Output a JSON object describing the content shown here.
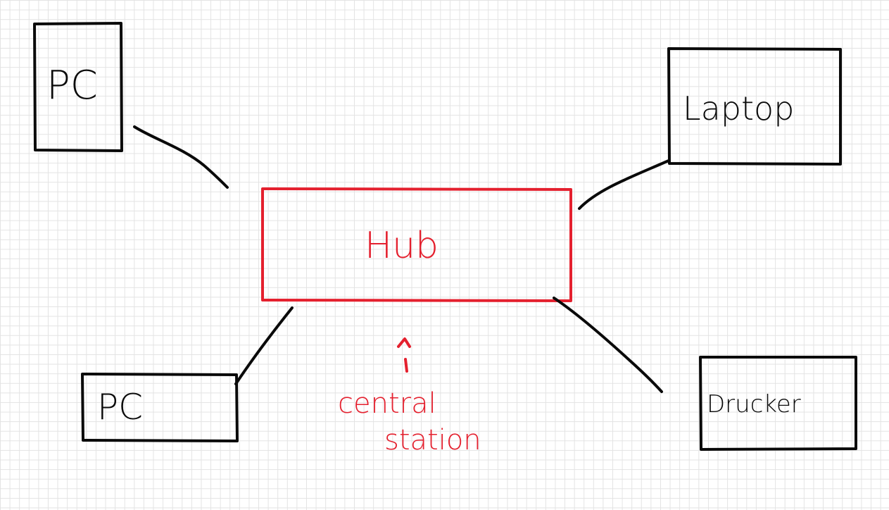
{
  "diagram": {
    "nodes": {
      "pc_top": {
        "label": "PC"
      },
      "laptop": {
        "label": "Laptop"
      },
      "hub": {
        "label": "Hub"
      },
      "pc_bottom": {
        "label": "PC"
      },
      "drucker": {
        "label": "Drucker"
      }
    },
    "annotation": {
      "line1": "central",
      "line2": "station"
    },
    "colors": {
      "ink": "#0a0a0a",
      "accent": "#e4202e",
      "grid": "#e3e3e3",
      "paper": "#ffffff"
    }
  }
}
